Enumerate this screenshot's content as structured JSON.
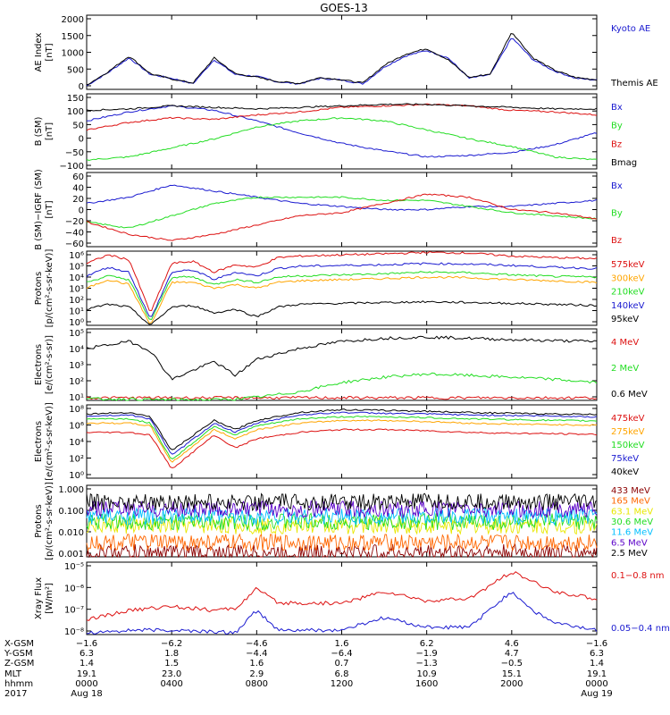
{
  "title": "GOES-13",
  "colors": {
    "black": "#000000",
    "blue": "#1a1ad0",
    "green": "#22dd22",
    "red": "#dd1111",
    "orange": "#ffa500",
    "darkred": "#8b0000",
    "purple": "#5a00c8",
    "cyan": "#00bfff",
    "yellow": "#e8e800",
    "darkorange": "#ff6600"
  },
  "panels": [
    {
      "id": "ae",
      "ylabel": [
        "AE Index",
        "[nT]"
      ],
      "yticks": [
        "2000",
        "1500",
        "1000",
        "500",
        "0"
      ],
      "legend": [
        {
          "text": "Kyoto AE",
          "color": "#1a1ad0"
        },
        {
          "text": "Themis AE",
          "color": "#000000"
        }
      ]
    },
    {
      "id": "bsm",
      "ylabel": [
        "B (SM)",
        "[nT]"
      ],
      "yticks": [
        "150",
        "100",
        "50",
        "0",
        "−50",
        "−100"
      ],
      "legend": [
        {
          "text": "Bx",
          "color": "#1a1ad0"
        },
        {
          "text": "By",
          "color": "#22dd22"
        },
        {
          "text": "Bz",
          "color": "#dd1111"
        },
        {
          "text": "Bmag",
          "color": "#000000"
        }
      ]
    },
    {
      "id": "bigrf",
      "ylabel": [
        "B (SM)−IGRF (SM)",
        "[nT]"
      ],
      "yticks": [
        "60",
        "40",
        "20",
        "0",
        "−20",
        "−40",
        "−60"
      ],
      "legend": [
        {
          "text": "Bx",
          "color": "#1a1ad0"
        },
        {
          "text": "By",
          "color": "#22dd22"
        },
        {
          "text": "Bz",
          "color": "#dd1111"
        }
      ]
    },
    {
      "id": "protons",
      "ylabel": [
        "Protons",
        "[p/(cm²-s-sr-keV)]"
      ],
      "yticks": [
        "10⁶",
        "10⁵",
        "10⁴",
        "10³",
        "10²",
        "10¹",
        "10⁰"
      ],
      "legend": [
        {
          "text": "575keV",
          "color": "#dd1111"
        },
        {
          "text": "300keV",
          "color": "#ffa500"
        },
        {
          "text": "210keV",
          "color": "#22dd22"
        },
        {
          "text": "140keV",
          "color": "#1a1ad0"
        },
        {
          "text": "95keV",
          "color": "#000000"
        }
      ]
    },
    {
      "id": "electrons_mev",
      "ylabel": [
        "Electrons",
        "[e/(cm²-s-sr)]"
      ],
      "yticks": [
        "10⁵",
        "10⁴",
        "10³",
        "10²",
        "10¹"
      ],
      "legend": [
        {
          "text": "4 MeV",
          "color": "#dd1111"
        },
        {
          "text": "2 MeV",
          "color": "#22dd22"
        },
        {
          "text": "0.6 MeV",
          "color": "#000000"
        }
      ]
    },
    {
      "id": "electrons_kev",
      "ylabel": [
        "Electrons",
        "[e/(cm²-s-sr-keV)]"
      ],
      "yticks": [
        "10⁸",
        "10⁶",
        "10⁴",
        "10²",
        "10⁰"
      ],
      "legend": [
        {
          "text": "475keV",
          "color": "#dd1111"
        },
        {
          "text": "275keV",
          "color": "#ffa500"
        },
        {
          "text": "150keV",
          "color": "#22dd22"
        },
        {
          "text": "75keV",
          "color": "#1a1ad0"
        },
        {
          "text": "40keV",
          "color": "#000000"
        }
      ]
    },
    {
      "id": "protons_mev",
      "ylabel": [
        "Protons",
        "[p/(cm²-s-sr-keV)]"
      ],
      "yticks": [
        "1.000",
        "0.100",
        "0.010",
        "0.001"
      ],
      "legend": [
        {
          "text": "433 MeV",
          "color": "#8b0000"
        },
        {
          "text": "165 MeV",
          "color": "#ff6600"
        },
        {
          "text": "63.1 MeV",
          "color": "#e8e800"
        },
        {
          "text": "30.6 MeV",
          "color": "#22dd22"
        },
        {
          "text": "11.6 MeV",
          "color": "#00bfff"
        },
        {
          "text": "6.5 MeV",
          "color": "#5a00c8"
        },
        {
          "text": "2.5 MeV",
          "color": "#000000"
        }
      ]
    },
    {
      "id": "xray",
      "ylabel": [
        "Xray Flux",
        "[W/m²]"
      ],
      "yticks": [
        "10⁻⁵",
        "10⁻⁶",
        "10⁻⁷",
        "10⁻⁸"
      ],
      "legend": [
        {
          "text": "0.1−0.8 nm",
          "color": "#dd1111"
        },
        {
          "text": "0.05−0.4 nm",
          "color": "#1a1ad0"
        }
      ]
    }
  ],
  "xaxis": {
    "row_labels": [
      "X-GSM",
      "Y-GSM",
      "Z-GSM",
      "MLT",
      "hhmm",
      "2017"
    ],
    "columns": [
      [
        "−1.6",
        "6.3",
        "1.4",
        "19.1",
        "0000",
        "Aug 18"
      ],
      [
        "−6.2",
        "1.8",
        "1.5",
        "23.0",
        "0400",
        ""
      ],
      [
        "−4.6",
        "−4.4",
        "1.6",
        "2.9",
        "0800",
        ""
      ],
      [
        "1.6",
        "−6.4",
        "0.7",
        "6.8",
        "1200",
        ""
      ],
      [
        "6.2",
        "−1.9",
        "−1.3",
        "10.9",
        "1600",
        ""
      ],
      [
        "4.6",
        "4.7",
        "−0.5",
        "15.1",
        "2000",
        ""
      ],
      [
        "−1.6",
        "6.3",
        "1.4",
        "19.1",
        "0000",
        "Aug 19"
      ]
    ]
  },
  "chart_data": [
    {
      "type": "line",
      "name": "AE Index",
      "ylabel": "AE Index [nT]",
      "ylim": [
        0,
        2000
      ],
      "x": [
        0,
        1,
        2,
        3,
        4,
        5,
        6,
        7,
        8,
        9,
        10,
        11,
        12,
        13,
        14,
        15,
        16,
        17,
        18,
        19,
        20,
        21,
        22,
        23,
        24
      ],
      "series": [
        {
          "name": "Kyoto AE",
          "values": [
            100,
            450,
            850,
            400,
            300,
            150,
            800,
            400,
            350,
            200,
            150,
            300,
            250,
            150,
            600,
            900,
            1050,
            850,
            300,
            400,
            1400,
            800,
            500,
            300,
            250
          ]
        },
        {
          "name": "Themis AE",
          "values": [
            120,
            470,
            900,
            420,
            280,
            170,
            850,
            420,
            330,
            210,
            160,
            320,
            260,
            170,
            650,
            950,
            1100,
            800,
            320,
            420,
            1550,
            850,
            520,
            320,
            260
          ]
        }
      ]
    },
    {
      "type": "line",
      "name": "B (SM)",
      "ylabel": "B (SM) [nT]",
      "ylim": [
        -100,
        150
      ],
      "x": [
        0,
        2,
        4,
        6,
        8,
        10,
        12,
        14,
        16,
        18,
        20,
        22,
        24
      ],
      "series": [
        {
          "name": "Bx",
          "values": [
            60,
            90,
            110,
            95,
            60,
            20,
            -15,
            -40,
            -60,
            -55,
            -45,
            -20,
            20
          ]
        },
        {
          "name": "By",
          "values": [
            -70,
            -60,
            -30,
            0,
            40,
            60,
            70,
            60,
            30,
            0,
            -25,
            -60,
            -70
          ]
        },
        {
          "name": "Bz",
          "values": [
            30,
            55,
            70,
            65,
            80,
            90,
            105,
            110,
            115,
            110,
            95,
            90,
            80
          ]
        },
        {
          "name": "Bmag",
          "values": [
            95,
            100,
            110,
            105,
            100,
            105,
            110,
            115,
            115,
            110,
            105,
            100,
            100
          ]
        }
      ]
    },
    {
      "type": "line",
      "name": "B (SM)−IGRF (SM)",
      "ylabel": "B (SM)−IGRF (SM) [nT]",
      "ylim": [
        -60,
        60
      ],
      "x": [
        0,
        2,
        4,
        6,
        8,
        10,
        12,
        14,
        16,
        18,
        20,
        22,
        24
      ],
      "series": [
        {
          "name": "Bx",
          "values": [
            10,
            20,
            40,
            30,
            20,
            10,
            5,
            0,
            0,
            5,
            5,
            10,
            15
          ]
        },
        {
          "name": "By",
          "values": [
            -20,
            -30,
            -10,
            10,
            20,
            20,
            20,
            15,
            15,
            5,
            -5,
            -10,
            -15
          ]
        },
        {
          "name": "Bz",
          "values": [
            -20,
            -40,
            -50,
            -40,
            -25,
            -10,
            -5,
            10,
            25,
            20,
            0,
            -5,
            -15
          ]
        }
      ]
    },
    {
      "type": "line",
      "name": "Protons",
      "ylabel": "Protons [p/(cm²-s-sr-keV)]",
      "log_y": true,
      "ylim": [
        1,
        1000000
      ],
      "x": [
        0,
        1,
        2,
        3,
        4,
        5,
        6,
        7,
        8,
        9,
        10,
        12,
        14,
        16,
        18,
        20,
        22,
        24
      ],
      "series": [
        {
          "name": "575keV",
          "values": [
            100000,
            500000,
            200000,
            10,
            100000,
            150000,
            20000,
            80000,
            50000,
            300000,
            400000,
            500000,
            600000,
            800000,
            700000,
            400000,
            300000,
            250000
          ]
        },
        {
          "name": "300keV",
          "values": [
            1000,
            5000,
            2000,
            1,
            3000,
            3000,
            1000,
            2000,
            1000,
            3000,
            4000,
            5000,
            6000,
            8000,
            7000,
            5000,
            4000,
            3000
          ]
        },
        {
          "name": "210keV",
          "values": [
            3000,
            10000,
            5000,
            2,
            8000,
            8000,
            2000,
            5000,
            3000,
            8000,
            10000,
            12000,
            15000,
            20000,
            18000,
            12000,
            9000,
            8000
          ]
        },
        {
          "name": "140keV",
          "values": [
            10000,
            50000,
            20000,
            3,
            20000,
            30000,
            5000,
            20000,
            10000,
            40000,
            60000,
            70000,
            80000,
            100000,
            90000,
            70000,
            50000,
            40000
          ]
        },
        {
          "name": "95keV",
          "values": [
            20,
            50,
            30,
            1,
            30,
            40,
            10,
            20,
            5,
            30,
            50,
            60,
            70,
            80,
            70,
            60,
            50,
            40
          ]
        }
      ]
    },
    {
      "type": "line",
      "name": "Electrons MeV",
      "ylabel": "Electrons [e/(cm²-s-sr)]",
      "log_y": true,
      "ylim": [
        10,
        100000
      ],
      "x": [
        0,
        2,
        3,
        4,
        6,
        7,
        8,
        10,
        12,
        14,
        16,
        18,
        20,
        22,
        24
      ],
      "series": [
        {
          "name": "4 MeV",
          "values": [
            14,
            14,
            14,
            14,
            14,
            14,
            14,
            14,
            14,
            14,
            14,
            14,
            14,
            14,
            14
          ]
        },
        {
          "name": "2 MeV",
          "values": [
            12,
            12,
            11,
            11,
            11,
            12,
            15,
            30,
            100,
            200,
            300,
            250,
            200,
            150,
            100
          ]
        },
        {
          "name": "0.6 MeV",
          "values": [
            8000,
            20000,
            6000,
            150,
            1500,
            250,
            2000,
            8000,
            20000,
            30000,
            35000,
            30000,
            25000,
            22000,
            20000
          ]
        }
      ]
    },
    {
      "type": "line",
      "name": "Electrons keV",
      "ylabel": "Electrons [e/(cm²-s-sr-keV)]",
      "log_y": true,
      "ylim": [
        1,
        100000000
      ],
      "x": [
        0,
        2,
        3,
        4,
        6,
        7,
        8,
        10,
        12,
        14,
        16,
        18,
        20,
        22,
        24
      ],
      "series": [
        {
          "name": "475keV",
          "values": [
            100000,
            100000,
            50000,
            10,
            50000,
            2000,
            20000,
            100000,
            200000,
            200000,
            150000,
            100000,
            80000,
            70000,
            60000
          ]
        },
        {
          "name": "275keV",
          "values": [
            1000000,
            1000000,
            500000,
            50,
            200000,
            20000,
            200000,
            1000000,
            2000000,
            2000000,
            1500000,
            1000000,
            800000,
            700000,
            600000
          ]
        },
        {
          "name": "150keV",
          "values": [
            3000000,
            3000000,
            1000000,
            100,
            500000,
            50000,
            500000,
            3000000,
            5000000,
            5000000,
            4000000,
            3000000,
            2500000,
            2000000,
            1800000
          ]
        },
        {
          "name": "75keV",
          "values": [
            6000000,
            8000000,
            3000000,
            300,
            1000000,
            100000,
            1000000,
            8000000,
            15000000,
            12000000,
            10000000,
            8000000,
            7000000,
            6000000,
            5000000
          ]
        },
        {
          "name": "40keV",
          "values": [
            10000000,
            15000000,
            5000000,
            1000,
            2000000,
            200000,
            2000000,
            15000000,
            30000000,
            25000000,
            20000000,
            15000000,
            12000000,
            10000000,
            9000000
          ]
        }
      ]
    },
    {
      "type": "line",
      "name": "Protons MeV",
      "ylabel": "Protons [p/(cm²-s-sr-keV)]",
      "log_y": true,
      "ylim": [
        0.001,
        1
      ],
      "x": [
        0,
        24
      ],
      "series": [
        {
          "name": "433 MeV",
          "values": [
            0.0015,
            0.0015
          ]
        },
        {
          "name": "165 MeV",
          "values": [
            0.004,
            0.004
          ]
        },
        {
          "name": "63.1 MeV",
          "values": [
            0.02,
            0.02
          ]
        },
        {
          "name": "30.6 MeV",
          "values": [
            0.03,
            0.03
          ]
        },
        {
          "name": "11.6 MeV",
          "values": [
            0.05,
            0.05
          ]
        },
        {
          "name": "6.5 MeV",
          "values": [
            0.1,
            0.1
          ]
        },
        {
          "name": "2.5 MeV",
          "values": [
            0.2,
            0.2
          ]
        }
      ]
    },
    {
      "type": "line",
      "name": "Xray Flux",
      "ylabel": "Xray Flux [W/m²]",
      "log_y": true,
      "ylim": [
        1e-08,
        1e-05
      ],
      "x": [
        0,
        2,
        4,
        6,
        7,
        8,
        9,
        10,
        12,
        14,
        16,
        18,
        20,
        21,
        22,
        24
      ],
      "series": [
        {
          "name": "0.1−0.8 nm",
          "values": [
            4e-08,
            1e-07,
            1.5e-07,
            1e-07,
            1.2e-07,
            8e-07,
            2e-07,
            2e-07,
            2e-07,
            6e-07,
            2.5e-07,
            3e-07,
            4e-06,
            1.5e-06,
            6e-07,
            3e-07
          ]
        },
        {
          "name": "0.05−0.4 nm",
          "values": [
            1.2e-08,
            1.5e-08,
            1.5e-08,
            1.3e-08,
            1.2e-08,
            1e-07,
            1.5e-08,
            1.5e-08,
            1.5e-08,
            5e-08,
            2e-08,
            2e-08,
            6e-07,
            1e-07,
            3e-08,
            1.5e-08
          ]
        }
      ]
    }
  ]
}
